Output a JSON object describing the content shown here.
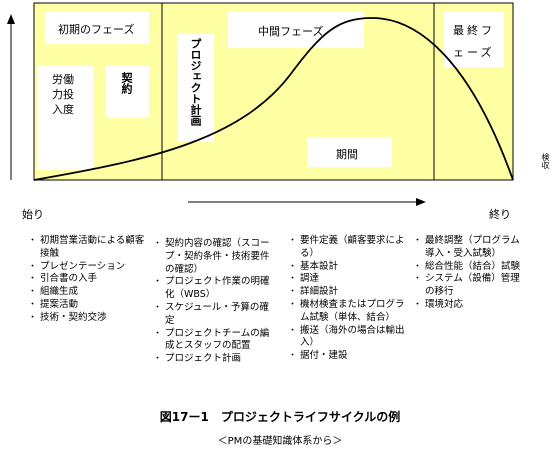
{
  "phases": {
    "initial": "初期のフェーズ",
    "middle": "中間フェーズ",
    "final": "最終フェーズ"
  },
  "boxes": {
    "labor": "労働力投入度",
    "contract": "契約",
    "project_plan": "プロジェクト計画",
    "period": "期間"
  },
  "axis": {
    "start": "始り",
    "end": "終り",
    "handover": "検収"
  },
  "columns": [
    {
      "items": [
        "初期営業活動による顧客接触",
        "プレゼンテーション",
        "引合書の入手",
        "組織生成",
        "提案活動",
        "技術・契約交渉"
      ]
    },
    {
      "items": [
        "契約内容の確認（スコープ・契約条件・技術要件の確認）",
        "プロジェクト作業の明確化（WBS）",
        "スケジュール・予算の確定",
        "プロジェクトチームの編成とスタッフの配置",
        "プロジェクト計画"
      ]
    },
    {
      "items": [
        "要件定義（顧客要求による）",
        "基本設計",
        "調達",
        "詳細設計",
        "機材検査またはプログラム試験（単体、結合）",
        "搬送（海外の場合は輸出入）",
        "据付・建設"
      ]
    },
    {
      "items": [
        "最終調整（プログラム導入・受入試験）",
        "総合性能（結合）試験",
        "システム（設備）管理の移行",
        "環境対応"
      ]
    }
  ],
  "caption": {
    "title": "図17ー1　プロジェクトライフサイクルの例",
    "source": "＜PMの基礎知識体系から＞"
  },
  "colors": {
    "background": "#ffffa3",
    "line": "#000000"
  }
}
